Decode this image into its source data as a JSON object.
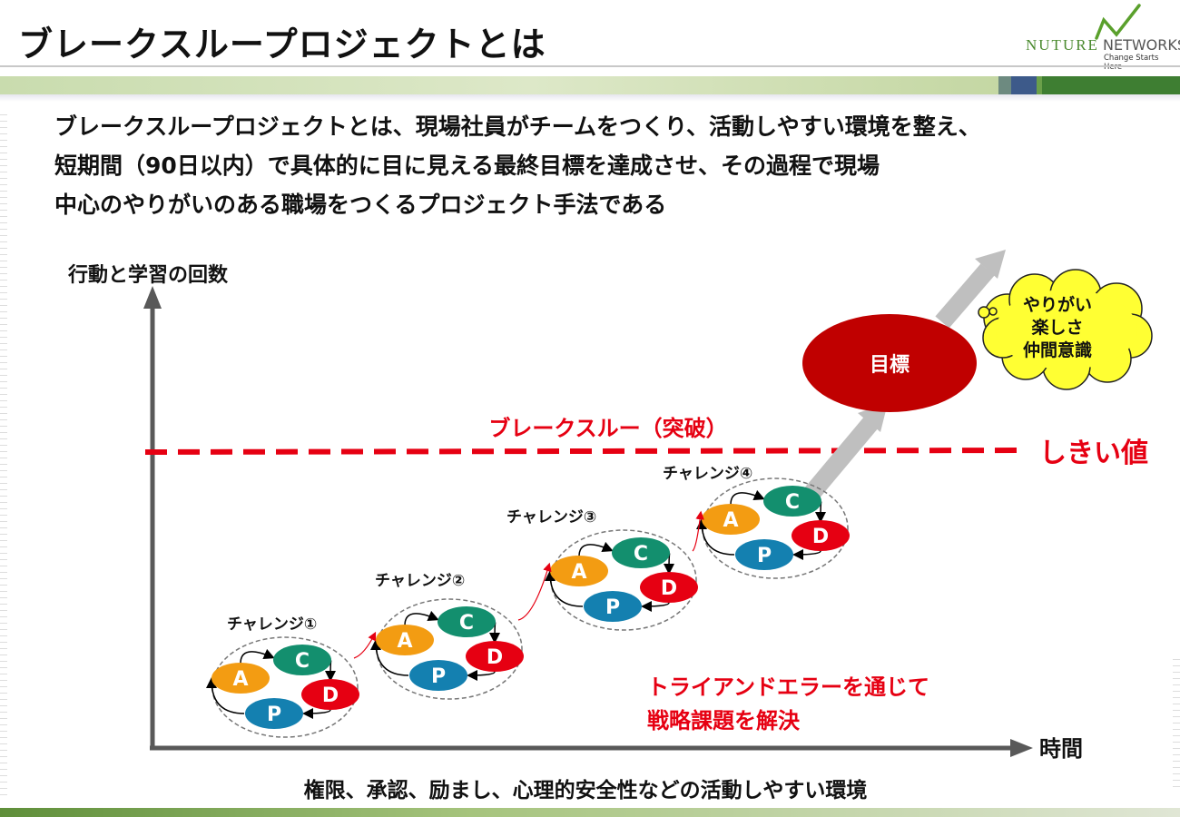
{
  "slide": {
    "title": "ブレークスループロジェクトとは",
    "logo": {
      "brand_left": "NUTURE",
      "brand_right": "NETWORKS",
      "tagline": "Change Starts Here"
    },
    "definition_lines": [
      "ブレークスループロジェクトとは、現場社員がチームをつくり、活動しやすい環境を整え、",
      "短期間（90日以内）で具体的に目に見える最終目標を達成させ、その過程で現場",
      "中心のやりがいのある職場をつくるプロジェクト手法である"
    ]
  },
  "diagram": {
    "y_axis_label": "行動と学習の回数",
    "x_axis_label": "時間",
    "threshold_label": "しきい値",
    "breakthrough_label": "ブレークスルー（突破）",
    "goal_label": "目標",
    "cloud_lines": [
      "やりがい",
      "楽しさ",
      "仲間意識"
    ],
    "trial_lines": [
      "トライアンドエラーを通じて",
      "戦略課題を解決"
    ],
    "environment_label": "権限、承認、励まし、心理的安全性などの活動しやすい環境",
    "challenges": [
      {
        "label": "チャレンジ①"
      },
      {
        "label": "チャレンジ②"
      },
      {
        "label": "チャレンジ③"
      },
      {
        "label": "チャレンジ④"
      }
    ],
    "cycle": {
      "A": {
        "text": "A",
        "color": "#f39c12"
      },
      "C": {
        "text": "C",
        "color": "#138f6e"
      },
      "D": {
        "text": "D",
        "color": "#e60012"
      },
      "P": {
        "text": "P",
        "color": "#1480b0"
      }
    },
    "colors": {
      "red": "#e60012",
      "goal": "#c00000",
      "cloud": "#ffff33",
      "arrow": "#bfbfbf",
      "axis": "#595959"
    }
  }
}
